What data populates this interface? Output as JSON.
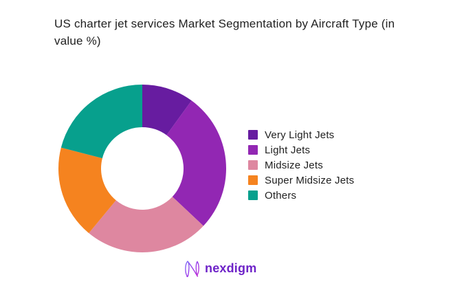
{
  "title": "US charter jet services Market Segmentation by Aircraft Type (in value %)",
  "chart_data": {
    "type": "pie",
    "variant": "donut",
    "title": "US charter jet services Market Segmentation by Aircraft Type (in value %)",
    "categories": [
      "Very Light Jets",
      "Light Jets",
      "Midsize Jets",
      "Super Midsize Jets",
      "Others"
    ],
    "values": [
      10,
      27,
      24,
      18,
      21
    ],
    "unit": "%",
    "colors": [
      "#671CA0",
      "#9227B3",
      "#DE87A0",
      "#F5831F",
      "#07A08D"
    ],
    "start_angle_deg": 0,
    "direction": "clockwise",
    "inner_radius_ratio": 0.49,
    "legend_position": "right",
    "data_labels_shown": false,
    "background_color": "#FFFFFF",
    "title_color": "#212121"
  },
  "brand": {
    "name": "nexdigm",
    "wordmark_color": "#6E23C8"
  }
}
